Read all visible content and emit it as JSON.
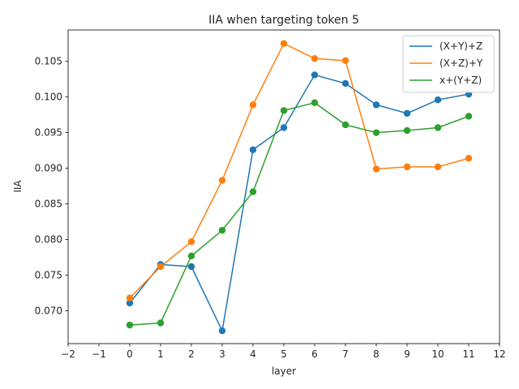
{
  "chart_data": {
    "type": "line",
    "title": "IIA when targeting token 5",
    "xlabel": "layer",
    "ylabel": "IIA",
    "xlim": [
      -2,
      12
    ],
    "ylim": [
      0.0654,
      0.1094
    ],
    "xticks": [
      -2,
      -1,
      0,
      1,
      2,
      3,
      4,
      5,
      6,
      7,
      8,
      9,
      10,
      11,
      12
    ],
    "yticks": [
      0.07,
      0.075,
      0.08,
      0.085,
      0.09,
      0.095,
      0.1,
      0.105
    ],
    "ytick_labels": [
      "0.070",
      "0.075",
      "0.080",
      "0.085",
      "0.090",
      "0.095",
      "0.100",
      "0.105"
    ],
    "grid": false,
    "legend_position": "top-right",
    "x": [
      0,
      1,
      2,
      3,
      4,
      5,
      6,
      7,
      8,
      9,
      10,
      11
    ],
    "series": [
      {
        "name": "(X+Y)+Z",
        "color": "#1f77b4",
        "values": [
          0.0711,
          0.0765,
          0.0762,
          0.0672,
          0.0926,
          0.0957,
          0.1031,
          0.1019,
          0.0989,
          0.0977,
          0.0996,
          0.1004
        ]
      },
      {
        "name": "(X+Z)+Y",
        "color": "#ff7f0e",
        "values": [
          0.0718,
          0.0762,
          0.0797,
          0.0883,
          0.0989,
          0.1075,
          0.1054,
          0.1051,
          0.0899,
          0.0902,
          0.0902,
          0.0914
        ]
      },
      {
        "name": "x+(Y+Z)",
        "color": "#2ca02c",
        "values": [
          0.068,
          0.0683,
          0.0777,
          0.0813,
          0.0867,
          0.0981,
          0.0992,
          0.0961,
          0.095,
          0.0953,
          0.0957,
          0.0973
        ]
      }
    ]
  }
}
